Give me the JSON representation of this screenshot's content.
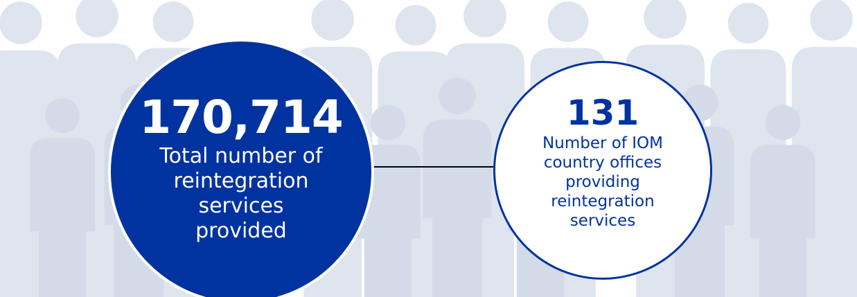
{
  "stats": [
    {
      "value": "170,714",
      "label": "Total number of reintegration services provided"
    },
    {
      "value": "131",
      "label": "Number of IOM country offices providing reintegration services"
    }
  ]
}
